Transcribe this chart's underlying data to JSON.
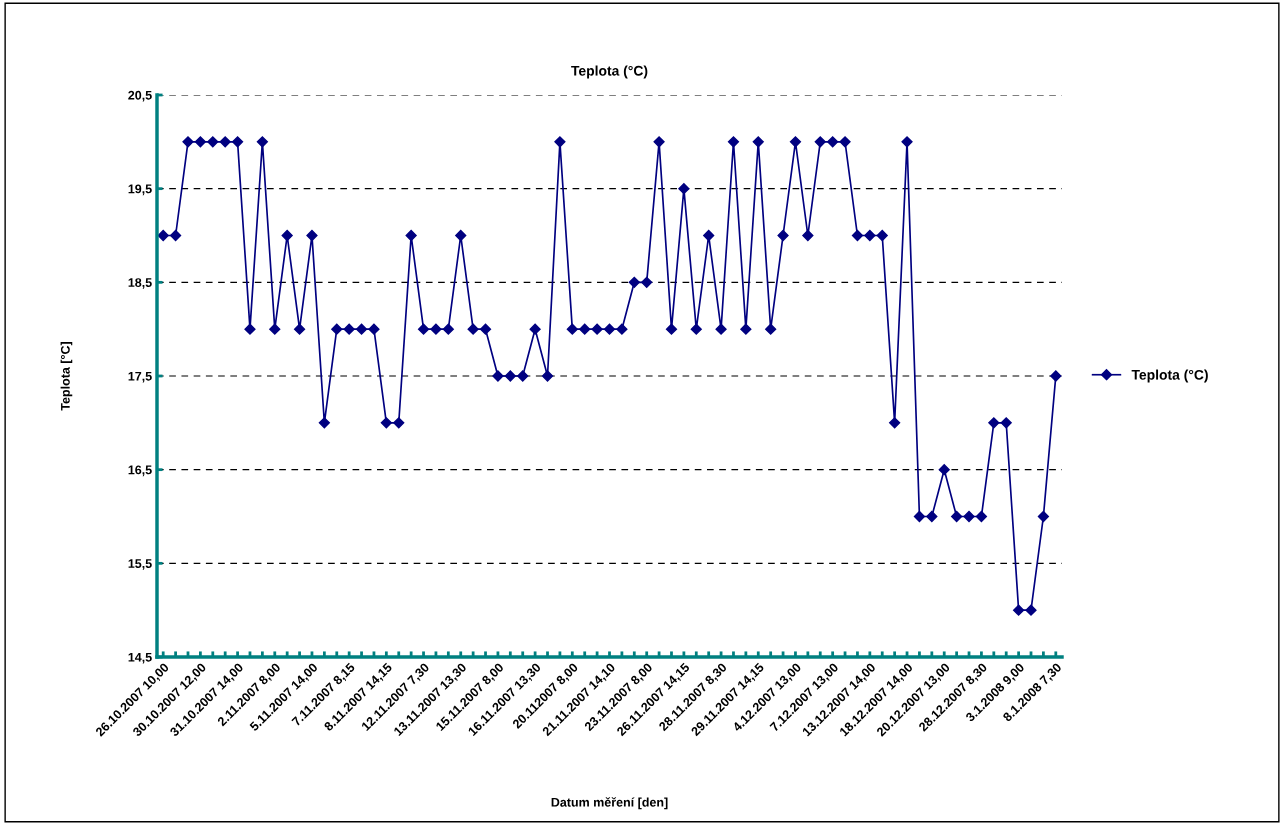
{
  "chart_data": {
    "type": "line",
    "title": "Teplota (°C)",
    "xlabel": "Datum měření [den]",
    "ylabel": "Teplota [°C]",
    "categories": [
      "26.10.2007 10,00",
      null,
      null,
      "30.10.2007 12,00",
      null,
      null,
      "31.10.2007 14,00",
      null,
      null,
      "2.11.2007 8,00",
      null,
      null,
      "5.11.2007 14,00",
      null,
      null,
      "7.11.2007 8,15",
      null,
      null,
      "8.11.2007 14,15",
      null,
      null,
      "12.11.2007 7,30",
      null,
      null,
      "13.11.2007 13,30",
      null,
      null,
      "15.11.2007 8,00",
      null,
      null,
      "16.11.2007 13,30",
      null,
      null,
      "20.112007 8,00",
      null,
      null,
      "21.11.2007 14,10",
      null,
      null,
      "23.11.2007 8,00",
      null,
      null,
      "26.11.2007 14,15",
      null,
      null,
      "28.11.2007 8,30",
      null,
      null,
      "29.11.2007 14,15",
      null,
      null,
      "4.12.2007 13,00",
      null,
      null,
      "7.12.2007 13,00",
      null,
      null,
      "13.12.2007 14,00",
      null,
      null,
      "18.12.2007 14,00",
      null,
      null,
      "20.12.2007 13,00",
      null,
      null,
      "28.12.2007 8,30",
      null,
      null,
      "3.1.2008 9,00",
      null,
      null,
      "8.1.2008 7,30"
    ],
    "series": [
      {
        "name": "Teplota (°C)",
        "color": "#000080",
        "values": [
          19,
          19,
          20,
          20,
          20,
          20,
          20,
          18,
          20,
          18,
          19,
          18,
          19,
          17,
          18,
          18,
          18,
          18,
          17,
          17,
          19,
          18,
          18,
          18,
          19,
          18,
          18,
          17.5,
          17.5,
          17.5,
          18,
          17.5,
          20,
          18,
          18,
          18,
          18,
          18,
          18.5,
          18.5,
          20,
          18,
          19.5,
          18,
          19,
          18,
          20,
          18,
          20,
          18,
          19,
          20,
          19,
          20,
          20,
          20,
          19,
          19,
          19,
          17,
          20,
          16,
          16,
          16.5,
          16,
          16,
          16,
          17,
          17,
          15,
          15,
          16,
          17.5
        ]
      }
    ],
    "ylim": [
      14.5,
      20.5
    ],
    "yticks": [
      {
        "value": 14.5,
        "label": "14,5"
      },
      {
        "value": 15.5,
        "label": "15,5"
      },
      {
        "value": 16.5,
        "label": "16,5"
      },
      {
        "value": 17.5,
        "label": "17,5"
      },
      {
        "value": 18.5,
        "label": "18,5"
      },
      {
        "value": 19.5,
        "label": "19,5"
      },
      {
        "value": 20.5,
        "label": "20,5"
      }
    ],
    "grid": "y",
    "legend": "right",
    "marker": "diamond",
    "line_style": "solid"
  }
}
